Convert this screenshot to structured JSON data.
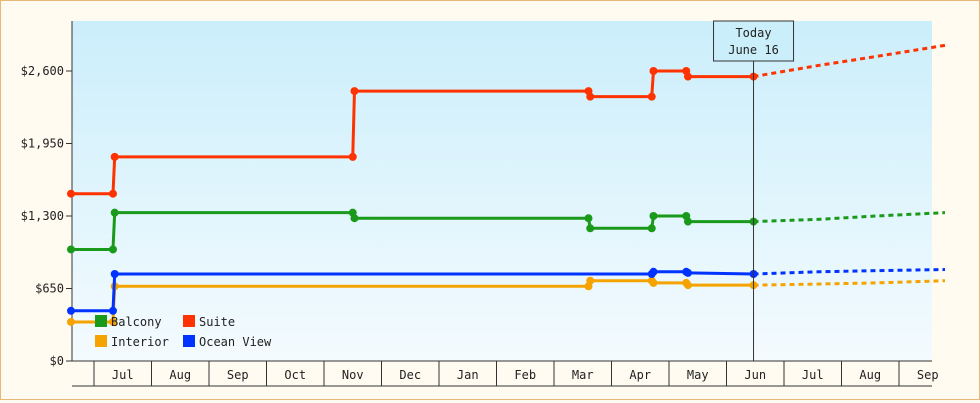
{
  "chart_data": {
    "type": "line",
    "title": "",
    "xlabel": "",
    "ylabel": "",
    "ylim": [
      0,
      2600
    ],
    "yticks": [
      0,
      650,
      1300,
      1950,
      2600
    ],
    "ytick_labels": [
      "$0",
      "$650",
      "$1,300",
      "$1,950",
      "$2,600"
    ],
    "x_range": [
      0,
      15.2
    ],
    "x_unit": "months",
    "months": [
      "Jul",
      "Aug",
      "Sep",
      "Oct",
      "Nov",
      "Dec",
      "Jan",
      "Feb",
      "Mar",
      "Apr",
      "May",
      "Jun",
      "Jul",
      "Aug",
      "Sep"
    ],
    "grid": false,
    "legend_position": "bottom-left",
    "today": {
      "x": 11.87,
      "label": "Today",
      "date": "June 16"
    },
    "series": [
      {
        "name": "Balcony",
        "color": "#1a9a1a",
        "points": [
          [
            0,
            1000
          ],
          [
            0.73,
            1000
          ],
          [
            0.76,
            1330
          ],
          [
            4.9,
            1330
          ],
          [
            4.93,
            1280
          ],
          [
            9.0,
            1280
          ],
          [
            9.03,
            1190
          ],
          [
            10.1,
            1190
          ],
          [
            10.13,
            1300
          ],
          [
            10.7,
            1300
          ],
          [
            10.73,
            1250
          ],
          [
            11.87,
            1250
          ]
        ],
        "forecast": [
          [
            11.87,
            1250
          ],
          [
            13.0,
            1270
          ],
          [
            14.0,
            1300
          ],
          [
            15.2,
            1330
          ]
        ]
      },
      {
        "name": "Suite",
        "color": "#ff3300",
        "points": [
          [
            0,
            1500
          ],
          [
            0.73,
            1500
          ],
          [
            0.76,
            1830
          ],
          [
            4.9,
            1830
          ],
          [
            4.93,
            2420
          ],
          [
            9.0,
            2420
          ],
          [
            9.03,
            2370
          ],
          [
            10.1,
            2370
          ],
          [
            10.13,
            2600
          ],
          [
            10.7,
            2600
          ],
          [
            10.73,
            2550
          ],
          [
            11.87,
            2550
          ]
        ],
        "forecast": [
          [
            11.87,
            2550
          ],
          [
            13.0,
            2650
          ],
          [
            14.0,
            2730
          ],
          [
            15.2,
            2830
          ]
        ]
      },
      {
        "name": "Interior",
        "color": "#f5a300",
        "points": [
          [
            0,
            350
          ],
          [
            0.73,
            350
          ],
          [
            0.76,
            670
          ],
          [
            9.0,
            670
          ],
          [
            9.03,
            720
          ],
          [
            10.1,
            720
          ],
          [
            10.13,
            700
          ],
          [
            10.7,
            700
          ],
          [
            10.73,
            680
          ],
          [
            11.87,
            680
          ]
        ],
        "forecast": [
          [
            11.87,
            680
          ],
          [
            13.0,
            690
          ],
          [
            14.0,
            700
          ],
          [
            15.2,
            720
          ]
        ]
      },
      {
        "name": "Ocean View",
        "color": "#0033ff",
        "points": [
          [
            0,
            450
          ],
          [
            0.73,
            450
          ],
          [
            0.76,
            780
          ],
          [
            10.1,
            780
          ],
          [
            10.13,
            800
          ],
          [
            10.7,
            800
          ],
          [
            10.73,
            790
          ],
          [
            11.87,
            780
          ]
        ],
        "forecast": [
          [
            11.87,
            780
          ],
          [
            13.0,
            800
          ],
          [
            14.0,
            810
          ],
          [
            15.2,
            820
          ]
        ]
      }
    ]
  }
}
